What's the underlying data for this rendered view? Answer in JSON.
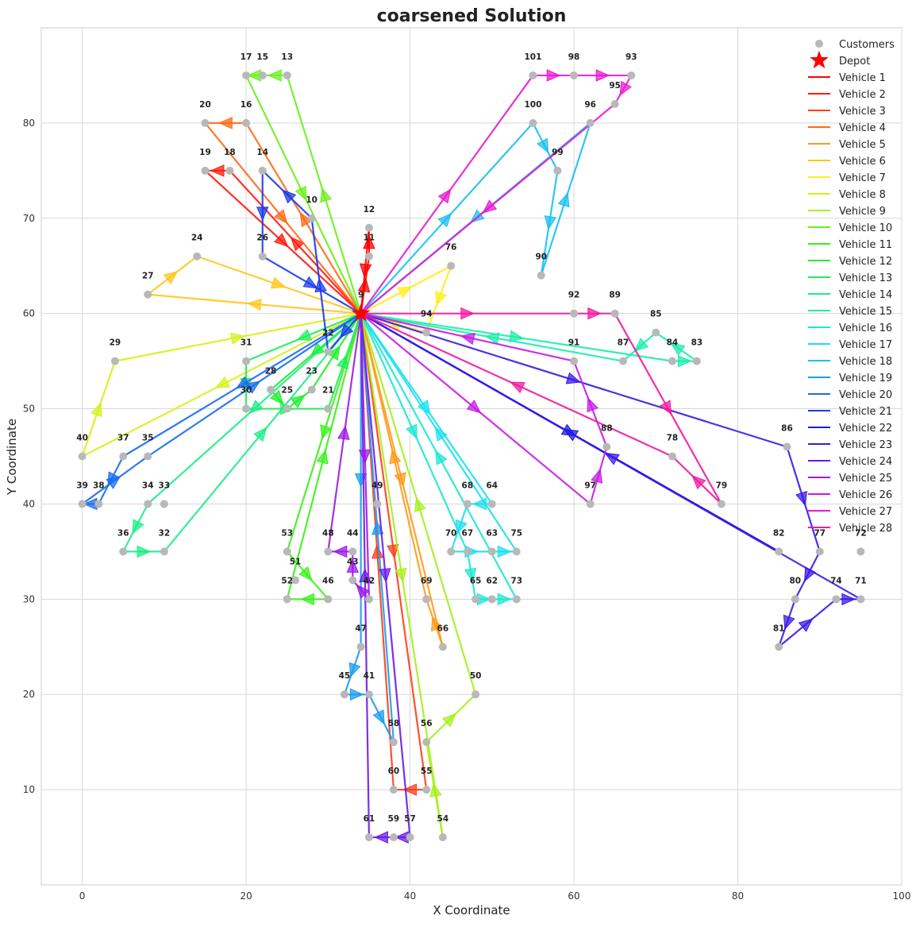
{
  "chart_data": {
    "type": "scatter",
    "title": "coarsened Solution",
    "xlabel": "X Coordinate",
    "ylabel": "Y Coordinate",
    "xlim": [
      -5,
      100
    ],
    "ylim": [
      0,
      90
    ],
    "xticks": [
      0,
      20,
      40,
      60,
      80,
      100
    ],
    "yticks": [
      10,
      20,
      30,
      40,
      50,
      60,
      70,
      80
    ],
    "grid": true,
    "legend_position": "top-right",
    "customers_label": "Customers",
    "depot_label": "Depot",
    "depot": {
      "id": "9",
      "x": 34,
      "y": 60
    },
    "customers": [
      {
        "id": "10",
        "x": 28,
        "y": 70
      },
      {
        "id": "11",
        "x": 35,
        "y": 66
      },
      {
        "id": "12",
        "x": 35,
        "y": 69
      },
      {
        "id": "13",
        "x": 25,
        "y": 85
      },
      {
        "id": "14",
        "x": 22,
        "y": 75
      },
      {
        "id": "15",
        "x": 22,
        "y": 85
      },
      {
        "id": "16",
        "x": 20,
        "y": 80
      },
      {
        "id": "17",
        "x": 20,
        "y": 85
      },
      {
        "id": "18",
        "x": 18,
        "y": 75
      },
      {
        "id": "19",
        "x": 15,
        "y": 75
      },
      {
        "id": "20",
        "x": 15,
        "y": 80
      },
      {
        "id": "21",
        "x": 30,
        "y": 50
      },
      {
        "id": "22",
        "x": 30,
        "y": 56
      },
      {
        "id": "23",
        "x": 28,
        "y": 52
      },
      {
        "id": "24",
        "x": 14,
        "y": 66
      },
      {
        "id": "25",
        "x": 25,
        "y": 50
      },
      {
        "id": "26",
        "x": 22,
        "y": 66
      },
      {
        "id": "27",
        "x": 8,
        "y": 62
      },
      {
        "id": "28",
        "x": 23,
        "y": 52
      },
      {
        "id": "29",
        "x": 4,
        "y": 55
      },
      {
        "id": "30",
        "x": 20,
        "y": 50
      },
      {
        "id": "31",
        "x": 20,
        "y": 55
      },
      {
        "id": "32",
        "x": 10,
        "y": 35
      },
      {
        "id": "33",
        "x": 10,
        "y": 40
      },
      {
        "id": "34",
        "x": 8,
        "y": 40
      },
      {
        "id": "35",
        "x": 8,
        "y": 45
      },
      {
        "id": "36",
        "x": 5,
        "y": 35
      },
      {
        "id": "37",
        "x": 5,
        "y": 45
      },
      {
        "id": "38",
        "x": 2,
        "y": 40
      },
      {
        "id": "39",
        "x": 0,
        "y": 40
      },
      {
        "id": "40",
        "x": 0,
        "y": 45
      },
      {
        "id": "41",
        "x": 35,
        "y": 20
      },
      {
        "id": "42",
        "x": 35,
        "y": 30
      },
      {
        "id": "43",
        "x": 33,
        "y": 32
      },
      {
        "id": "44",
        "x": 33,
        "y": 35
      },
      {
        "id": "45",
        "x": 32,
        "y": 20
      },
      {
        "id": "46",
        "x": 30,
        "y": 30
      },
      {
        "id": "47",
        "x": 34,
        "y": 25
      },
      {
        "id": "48",
        "x": 30,
        "y": 35
      },
      {
        "id": "49",
        "x": 36,
        "y": 40
      },
      {
        "id": "50",
        "x": 48,
        "y": 20
      },
      {
        "id": "51",
        "x": 26,
        "y": 32
      },
      {
        "id": "52",
        "x": 25,
        "y": 30
      },
      {
        "id": "53",
        "x": 25,
        "y": 35
      },
      {
        "id": "54",
        "x": 44,
        "y": 5
      },
      {
        "id": "55",
        "x": 42,
        "y": 10
      },
      {
        "id": "56",
        "x": 42,
        "y": 15
      },
      {
        "id": "57",
        "x": 40,
        "y": 5
      },
      {
        "id": "58",
        "x": 38,
        "y": 15
      },
      {
        "id": "59",
        "x": 38,
        "y": 5
      },
      {
        "id": "60",
        "x": 38,
        "y": 10
      },
      {
        "id": "61",
        "x": 35,
        "y": 5
      },
      {
        "id": "62",
        "x": 50,
        "y": 30
      },
      {
        "id": "63",
        "x": 50,
        "y": 35
      },
      {
        "id": "64",
        "x": 50,
        "y": 40
      },
      {
        "id": "65",
        "x": 48,
        "y": 30
      },
      {
        "id": "66",
        "x": 44,
        "y": 25
      },
      {
        "id": "67",
        "x": 47,
        "y": 35
      },
      {
        "id": "68",
        "x": 47,
        "y": 40
      },
      {
        "id": "69",
        "x": 42,
        "y": 30
      },
      {
        "id": "70",
        "x": 45,
        "y": 35
      },
      {
        "id": "71",
        "x": 95,
        "y": 30
      },
      {
        "id": "72",
        "x": 95,
        "y": 35
      },
      {
        "id": "73",
        "x": 53,
        "y": 30
      },
      {
        "id": "74",
        "x": 92,
        "y": 30
      },
      {
        "id": "75",
        "x": 53,
        "y": 35
      },
      {
        "id": "76",
        "x": 45,
        "y": 65
      },
      {
        "id": "77",
        "x": 90,
        "y": 35
      },
      {
        "id": "78",
        "x": 72,
        "y": 45
      },
      {
        "id": "79",
        "x": 78,
        "y": 40
      },
      {
        "id": "80",
        "x": 87,
        "y": 30
      },
      {
        "id": "81",
        "x": 85,
        "y": 25
      },
      {
        "id": "82",
        "x": 85,
        "y": 35
      },
      {
        "id": "83",
        "x": 75,
        "y": 55
      },
      {
        "id": "84",
        "x": 72,
        "y": 55
      },
      {
        "id": "85",
        "x": 70,
        "y": 58
      },
      {
        "id": "86",
        "x": 86,
        "y": 46
      },
      {
        "id": "87",
        "x": 66,
        "y": 55
      },
      {
        "id": "88",
        "x": 64,
        "y": 46
      },
      {
        "id": "89",
        "x": 65,
        "y": 60
      },
      {
        "id": "90",
        "x": 56,
        "y": 64
      },
      {
        "id": "91",
        "x": 60,
        "y": 55
      },
      {
        "id": "92",
        "x": 60,
        "y": 60
      },
      {
        "id": "93",
        "x": 67,
        "y": 85
      },
      {
        "id": "94",
        "x": 42,
        "y": 58
      },
      {
        "id": "95",
        "x": 65,
        "y": 82
      },
      {
        "id": "96",
        "x": 62,
        "y": 80
      },
      {
        "id": "97",
        "x": 62,
        "y": 40
      },
      {
        "id": "98",
        "x": 60,
        "y": 85
      },
      {
        "id": "99",
        "x": 58,
        "y": 75
      },
      {
        "id": "100",
        "x": 55,
        "y": 80
      },
      {
        "id": "101",
        "x": 55,
        "y": 85
      }
    ],
    "series": [
      {
        "name": "Vehicle 1",
        "color": "#ff0000",
        "route": [
          "9",
          "11",
          "12",
          "9"
        ]
      },
      {
        "name": "Vehicle 2",
        "color": "#ff1a0d",
        "route": [
          "9",
          "18",
          "19",
          "9"
        ]
      },
      {
        "name": "Vehicle 3",
        "color": "#ff3d1a",
        "route": [
          "9",
          "55",
          "60",
          "9"
        ]
      },
      {
        "name": "Vehicle 4",
        "color": "#ff6a14",
        "route": [
          "9",
          "16",
          "20",
          "9"
        ]
      },
      {
        "name": "Vehicle 5",
        "color": "#ff9a1a",
        "route": [
          "9",
          "66",
          "69",
          "9"
        ]
      },
      {
        "name": "Vehicle 6",
        "color": "#ffc61a",
        "route": [
          "9",
          "27",
          "24",
          "9"
        ]
      },
      {
        "name": "Vehicle 7",
        "color": "#ffee1a",
        "route": [
          "9",
          "76",
          "94",
          "9"
        ]
      },
      {
        "name": "Vehicle 8",
        "color": "#d8f01a",
        "route": [
          "9",
          "40",
          "29",
          "9"
        ]
      },
      {
        "name": "Vehicle 9",
        "color": "#a6f01a",
        "route": [
          "9",
          "54",
          "56",
          "50",
          "9"
        ]
      },
      {
        "name": "Vehicle 10",
        "color": "#6cf01a",
        "route": [
          "9",
          "13",
          "15",
          "17",
          "9"
        ]
      },
      {
        "name": "Vehicle 11",
        "color": "#3af01a",
        "route": [
          "9",
          "53",
          "46",
          "52",
          "9"
        ]
      },
      {
        "name": "Vehicle 12",
        "color": "#1af02a",
        "route": [
          "9",
          "28",
          "25",
          "23",
          "9"
        ]
      },
      {
        "name": "Vehicle 13",
        "color": "#1af05a",
        "route": [
          "9",
          "31",
          "30",
          "21",
          "9"
        ]
      },
      {
        "name": "Vehicle 14",
        "color": "#1aee88",
        "route": [
          "9",
          "34",
          "36",
          "32",
          "9"
        ]
      },
      {
        "name": "Vehicle 15",
        "color": "#1aeeac",
        "route": [
          "9",
          "84",
          "83",
          "85",
          "87",
          "9"
        ]
      },
      {
        "name": "Vehicle 16",
        "color": "#1ae8d0",
        "route": [
          "9",
          "67",
          "65",
          "62",
          "73",
          "9"
        ]
      },
      {
        "name": "Vehicle 17",
        "color": "#1ae0f0",
        "route": [
          "9",
          "64",
          "68",
          "70",
          "63",
          "75",
          "9"
        ]
      },
      {
        "name": "Vehicle 18",
        "color": "#1ac0f0",
        "route": [
          "9",
          "100",
          "99",
          "90",
          "96",
          "9"
        ]
      },
      {
        "name": "Vehicle 19",
        "color": "#1a9cf0",
        "route": [
          "9",
          "47",
          "45",
          "41",
          "58",
          "9"
        ]
      },
      {
        "name": "Vehicle 20",
        "color": "#1a6cf0",
        "route": [
          "9",
          "37",
          "38",
          "39",
          "35",
          "9"
        ]
      },
      {
        "name": "Vehicle 21",
        "color": "#1a3af0",
        "route": [
          "9",
          "22",
          "10",
          "14",
          "26",
          "9"
        ]
      },
      {
        "name": "Vehicle 22",
        "color": "#1a1ae0",
        "route": [
          "9",
          "82",
          "9"
        ]
      },
      {
        "name": "Vehicle 23",
        "color": "#3a1ae8",
        "route": [
          "9",
          "86",
          "77",
          "80",
          "81",
          "74",
          "71",
          "9"
        ]
      },
      {
        "name": "Vehicle 24",
        "color": "#6a1ae8",
        "route": [
          "9",
          "57",
          "59",
          "61",
          "9"
        ]
      },
      {
        "name": "Vehicle 25",
        "color": "#9c1ae8",
        "route": [
          "9",
          "42",
          "43",
          "44",
          "48",
          "9"
        ]
      },
      {
        "name": "Vehicle 26",
        "color": "#c81ae8",
        "route": [
          "9",
          "97",
          "88",
          "91",
          "9"
        ]
      },
      {
        "name": "Vehicle 27",
        "color": "#e81ad0",
        "route": [
          "9",
          "101",
          "98",
          "93",
          "95",
          "9"
        ]
      },
      {
        "name": "Vehicle 28",
        "color": "#f01aa0",
        "route": [
          "9",
          "92",
          "89",
          "79",
          "78",
          "9"
        ]
      }
    ]
  }
}
